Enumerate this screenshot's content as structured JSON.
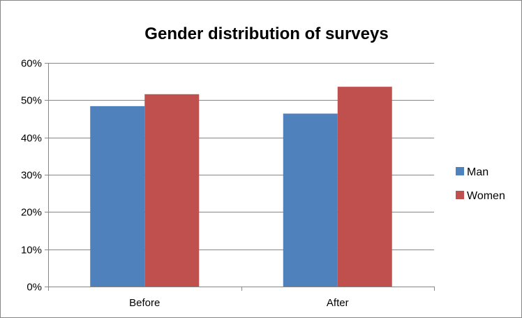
{
  "chart_data": {
    "type": "bar",
    "title": "Gender distribution of surveys",
    "xlabel": "",
    "ylabel": "",
    "categories": [
      "Before",
      "After"
    ],
    "series": [
      {
        "name": "Man",
        "color": "#4F81BD",
        "values": [
          48.4,
          46.4
        ]
      },
      {
        "name": "Women",
        "color": "#C0504D",
        "values": [
          51.6,
          53.6
        ]
      }
    ],
    "ylim": [
      0,
      60
    ],
    "yticks": [
      0,
      10,
      20,
      30,
      40,
      50,
      60
    ],
    "ytick_labels": [
      "0%",
      "10%",
      "20%",
      "30%",
      "40%",
      "50%",
      "60%"
    ],
    "grid": true,
    "legend_position": "right"
  }
}
